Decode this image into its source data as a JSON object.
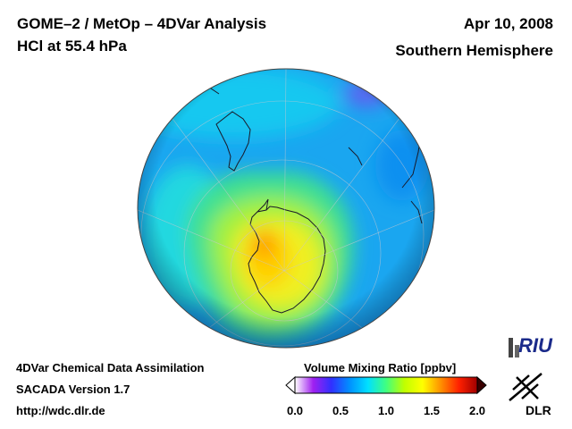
{
  "header": {
    "title": "GOME–2 / MetOp – 4DVar Analysis",
    "subtitle": "HCl at 55.4 hPa",
    "date": "Apr 10, 2008",
    "hemisphere": "Southern Hemisphere"
  },
  "footer": {
    "line1": "4DVar Chemical Data Assimilation",
    "line2": "SACADA Version 1.7",
    "line3": "http://wdc.dlr.de"
  },
  "colorbar": {
    "title": "Volume Mixing Ratio [ppbv]",
    "ticks": [
      "0.0",
      "0.5",
      "1.0",
      "1.5",
      "2.0"
    ],
    "min": 0.0,
    "max": 2.0,
    "colors": [
      "#ffffff",
      "#a020f0",
      "#3030ff",
      "#0090ff",
      "#00e0ff",
      "#40ff80",
      "#c0ff00",
      "#ffff00",
      "#ff9000",
      "#ff2000",
      "#a00000"
    ]
  },
  "logos": {
    "riu": "RIU",
    "dlr": "DLR"
  },
  "map": {
    "projection": "orthographic",
    "center": "South Pole",
    "features": [
      "Antarctica",
      "South America",
      "Africa",
      "Australia",
      "Graticule"
    ]
  }
}
